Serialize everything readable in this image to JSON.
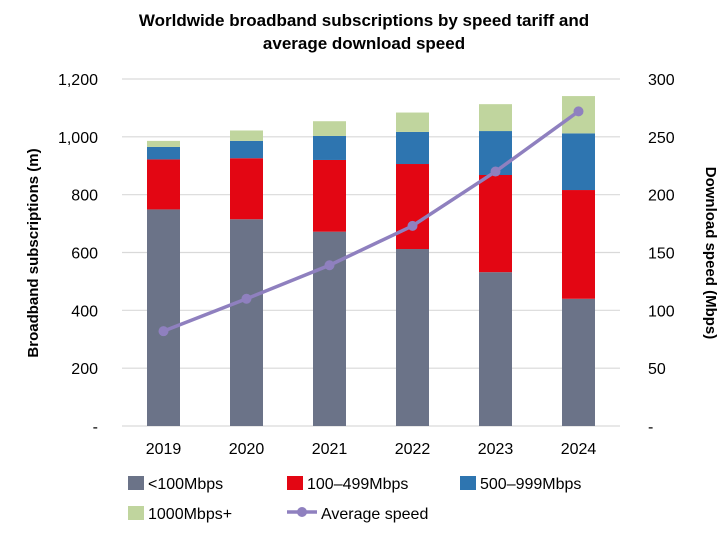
{
  "chart_data": {
    "type": "bar",
    "stacked": true,
    "title": "Worldwide broadband subscriptions by speed tariff and average download speed",
    "title_lines": [
      "Worldwide broadband subscriptions by speed tariff and",
      "average download speed"
    ],
    "categories": [
      "2019",
      "2020",
      "2021",
      "2022",
      "2023",
      "2024"
    ],
    "ylabel": "Broadband subscriptions (m)",
    "y2label": "Download speed (Mbps)",
    "ylim": [
      0,
      1200
    ],
    "y2lim": [
      0,
      300
    ],
    "yticks": [
      "-",
      "200",
      "400",
      "600",
      "800",
      "1,000",
      "1,200"
    ],
    "y2ticks": [
      "-",
      "50",
      "100",
      "150",
      "200",
      "250",
      "300"
    ],
    "grid": true,
    "legend_position": "bottom",
    "series": [
      {
        "name": "<100Mbps",
        "color": "#6b7388",
        "values": [
          749,
          715,
          672,
          612,
          532,
          440
        ]
      },
      {
        "name": "100–499Mbps",
        "color": "#e30613",
        "values": [
          173,
          211,
          248,
          294,
          336,
          376
        ]
      },
      {
        "name": "500–999Mbps",
        "color": "#2e75b0",
        "values": [
          43,
          60,
          83,
          111,
          152,
          196
        ]
      },
      {
        "name": "1000Mbps+",
        "color": "#c0d59e",
        "values": [
          21,
          36,
          51,
          67,
          93,
          129
        ]
      }
    ],
    "line_series": {
      "name": "Average speed",
      "color": "#8f80bf",
      "axis": "right",
      "values": [
        82,
        110,
        139,
        173,
        220,
        272
      ]
    }
  }
}
